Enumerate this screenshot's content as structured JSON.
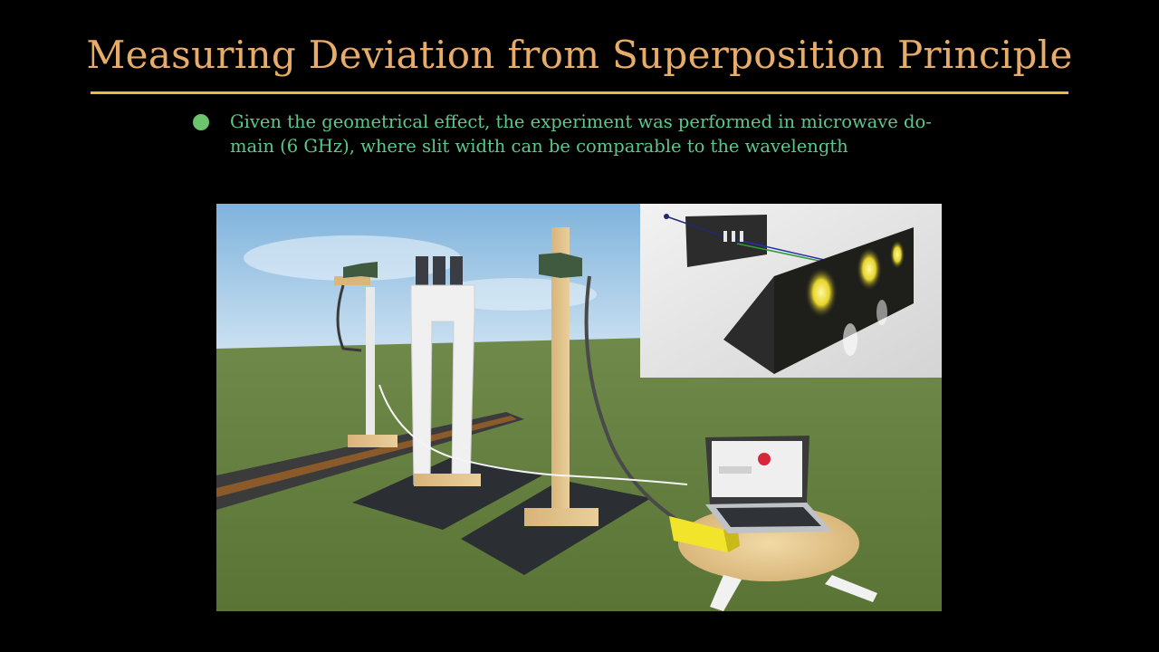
{
  "slide": {
    "title": "Measuring Deviation from Superposition Principle",
    "bullet_lines": [
      "Given the geometrical effect, the experiment was performed in microwave do-",
      "main (6 GHz), where slit width can be comparable to the wavelength"
    ]
  },
  "colors": {
    "background": "#000000",
    "title": "#E8AC6A",
    "rule": "#E8B84A",
    "bullet_marker": "#6CC46C",
    "bullet_text": "#5CC98A"
  },
  "figure": {
    "description_icons": [
      "microwave-horn-icon",
      "slit-assembly",
      "laptop-icon",
      "detector-box"
    ]
  }
}
